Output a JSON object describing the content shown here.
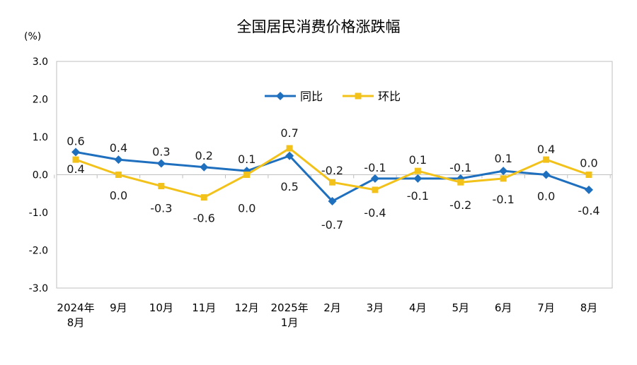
{
  "chart_data": {
    "type": "line",
    "title": "全国居民消费价格涨跌幅",
    "unit": "(%)",
    "ylim": [
      -3.0,
      3.0
    ],
    "yticks": [
      "3.0",
      "2.0",
      "1.0",
      "0.0",
      "-1.0",
      "-2.0",
      "-3.0"
    ],
    "categories": [
      [
        "2024年",
        "8月"
      ],
      [
        "9月"
      ],
      [
        "10月"
      ],
      [
        "11月"
      ],
      [
        "12月"
      ],
      [
        "2025年",
        "1月"
      ],
      [
        "2月"
      ],
      [
        "3月"
      ],
      [
        "4月"
      ],
      [
        "5月"
      ],
      [
        "6月"
      ],
      [
        "7月"
      ],
      [
        "8月"
      ]
    ],
    "legend_position": "top-center",
    "grid": false,
    "series": [
      {
        "name": "同比",
        "color": "#1f6fbf",
        "marker": "diamond",
        "values": [
          0.6,
          0.4,
          0.3,
          0.2,
          0.1,
          0.5,
          -0.7,
          -0.1,
          -0.1,
          -0.1,
          0.1,
          0.0,
          -0.4
        ],
        "labels": [
          "0.6",
          "0.4",
          "0.3",
          "0.2",
          "0.1",
          "0.5",
          "-0.7",
          "-0.1",
          "-0.1",
          "-0.1",
          "0.1",
          "0.0",
          "-0.4"
        ]
      },
      {
        "name": "环比",
        "color": "#f2c21b",
        "marker": "square",
        "values": [
          0.4,
          0.0,
          -0.3,
          -0.6,
          0.0,
          0.7,
          -0.2,
          -0.4,
          0.1,
          -0.2,
          -0.1,
          0.4,
          0.0
        ],
        "labels": [
          "0.4",
          "0.0",
          "-0.3",
          "-0.6",
          "0.0",
          "0.7",
          "-0.2",
          "-0.4",
          "0.1",
          "-0.2",
          "-0.1",
          "0.4",
          "0.0"
        ]
      }
    ]
  }
}
